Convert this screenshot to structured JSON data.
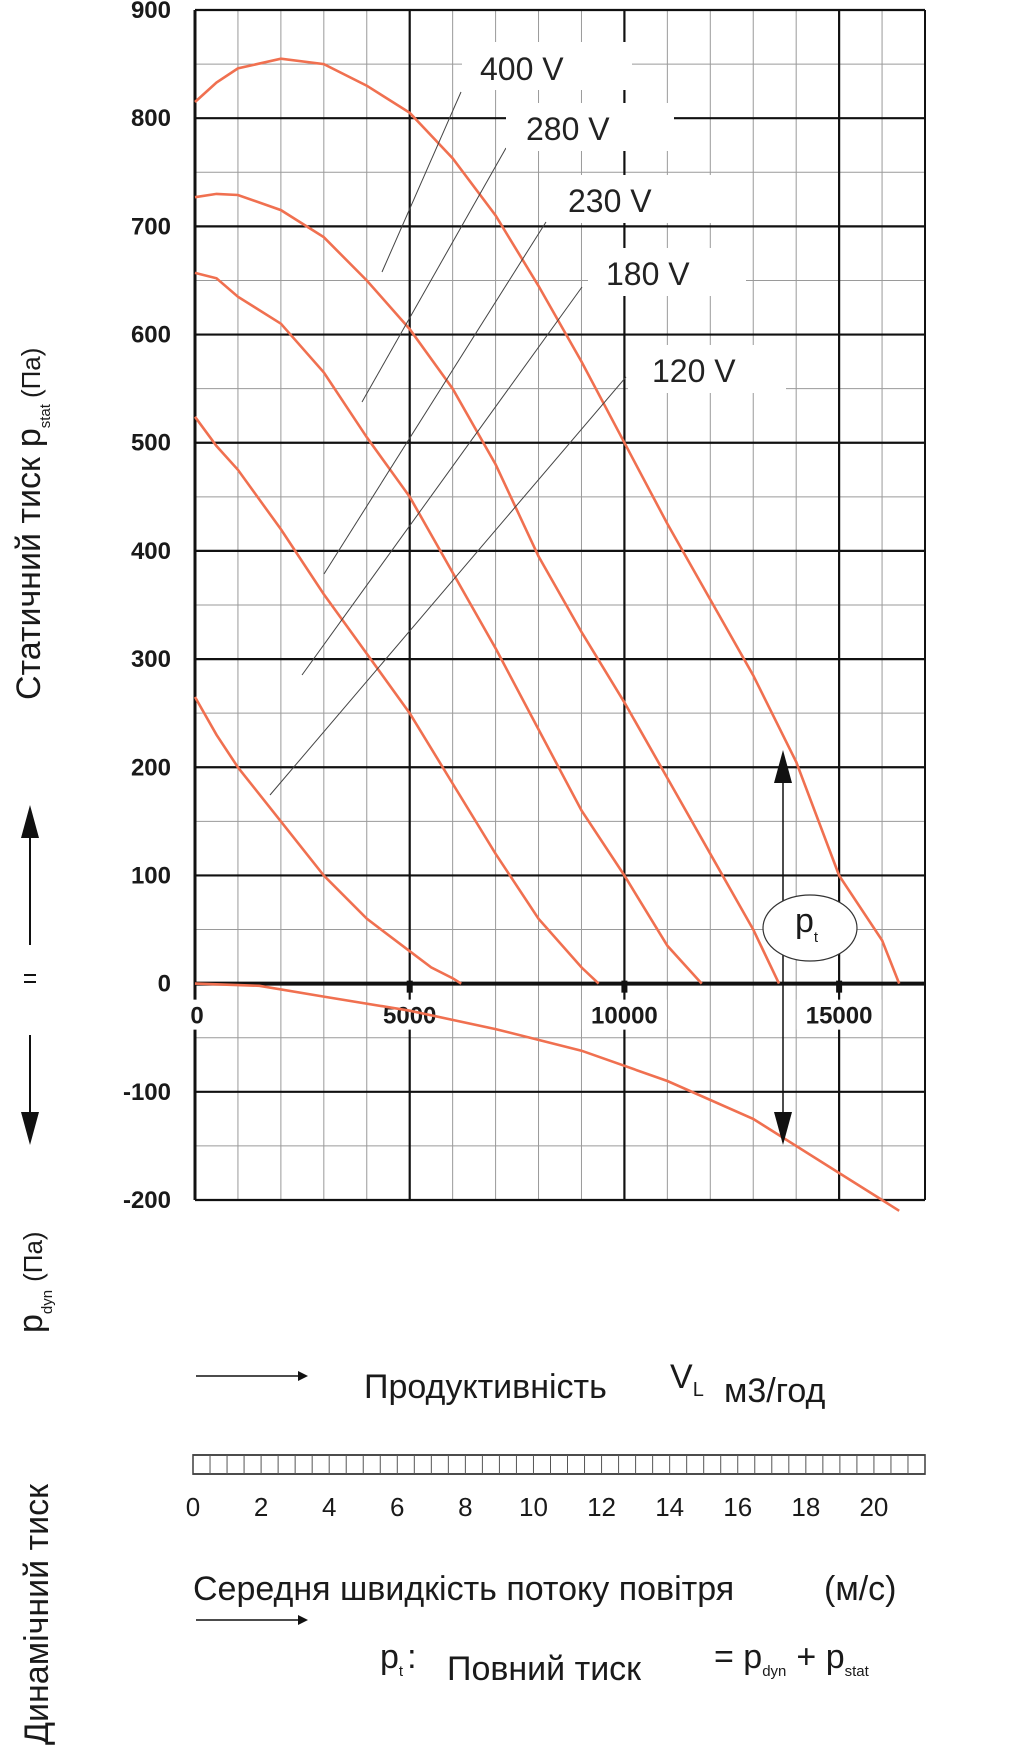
{
  "chart_data": {
    "type": "line",
    "xlim": [
      0,
      17000
    ],
    "ylim": [
      -200,
      900
    ],
    "x_ticks": [
      0,
      5000,
      10000,
      15000
    ],
    "y_ticks": [
      900,
      800,
      700,
      600,
      500,
      400,
      300,
      200,
      100,
      0,
      -100,
      -200
    ],
    "x_tick_labels": [
      "0",
      "5000",
      "10000",
      "15000"
    ],
    "y_tick_labels": [
      "900",
      "800",
      "700",
      "600",
      "500",
      "400",
      "300",
      "200",
      "100",
      "0",
      "-100",
      "-200"
    ],
    "grid": true,
    "series": [
      {
        "name": "400 V",
        "x": [
          0,
          500,
          1000,
          2000,
          3000,
          4000,
          5000,
          6000,
          7000,
          8000,
          9000,
          10000,
          11000,
          12000,
          13000,
          14000,
          15000,
          16000,
          16400
        ],
        "y": [
          815,
          833,
          846,
          855,
          850,
          830,
          805,
          763,
          710,
          645,
          575,
          500,
          425,
          355,
          285,
          205,
          100,
          40,
          0
        ]
      },
      {
        "name": "280 V",
        "x": [
          0,
          500,
          1000,
          2000,
          3000,
          4000,
          5000,
          6000,
          7000,
          8000,
          9000,
          10000,
          11000,
          12000,
          13000,
          13600
        ],
        "y": [
          727,
          730,
          729,
          715,
          690,
          650,
          605,
          550,
          480,
          395,
          325,
          260,
          190,
          120,
          50,
          0
        ]
      },
      {
        "name": "230 V",
        "x": [
          0,
          500,
          1000,
          2000,
          3000,
          4000,
          5000,
          6000,
          7000,
          8000,
          9000,
          10000,
          11000,
          11800
        ],
        "y": [
          657,
          652,
          635,
          610,
          565,
          505,
          450,
          380,
          310,
          235,
          160,
          100,
          35,
          0
        ]
      },
      {
        "name": "180 V",
        "x": [
          0,
          500,
          1000,
          2000,
          3000,
          4000,
          5000,
          6000,
          7000,
          8000,
          9000,
          9400
        ],
        "y": [
          524,
          497,
          475,
          420,
          360,
          305,
          250,
          185,
          120,
          60,
          15,
          0
        ]
      },
      {
        "name": "120 V",
        "x": [
          0,
          500,
          1000,
          2000,
          3000,
          4000,
          5000,
          5500,
          6000,
          6200
        ],
        "y": [
          265,
          230,
          200,
          150,
          100,
          60,
          30,
          15,
          5,
          0
        ]
      },
      {
        "name": "",
        "x": [
          0,
          1500,
          3000,
          5000,
          7000,
          9000,
          11000,
          13000,
          15000,
          16000,
          16400
        ],
        "y": [
          0,
          -2,
          -12,
          -25,
          -42,
          -62,
          -90,
          -125,
          -175,
          -200,
          -210
        ]
      }
    ]
  },
  "labels": {
    "y_axis_static": "Статичний тиск",
    "p_stat_main": "p",
    "p_stat_sub": "stat",
    "pa_unit": "(Па)",
    "y_axis_dynamic": "Динамічний тиск",
    "p_dyn_main": "p",
    "p_dyn_sub": "dyn",
    "x_axis_main": "Продуктивність",
    "v_l_main": "V",
    "v_l_sub": "L",
    "x_axis_unit": "м3/год",
    "velocity_axis_label": "Середня швидкість потоку повітря",
    "velocity_axis_unit": "(м/с)",
    "pt_main": "p",
    "pt_sub": "t",
    "pt_colon": ":",
    "total_pressure_label": "Повний тиск",
    "formula_eq_p": "= p",
    "formula_plus_p": "+ p",
    "formula_dyn_sub": "dyn",
    "formula_stat_sub": "stat"
  },
  "velocity_axis": {
    "tick_labels": [
      "0",
      "2",
      "4",
      "6",
      "8",
      "10",
      "12",
      "14",
      "16",
      "18",
      "20"
    ],
    "max": 21.5
  },
  "colors": {
    "curve": "#f07050",
    "grid_minor": "#9a9a9a",
    "grid_major": "#111111",
    "text": "#1a1a1a"
  }
}
